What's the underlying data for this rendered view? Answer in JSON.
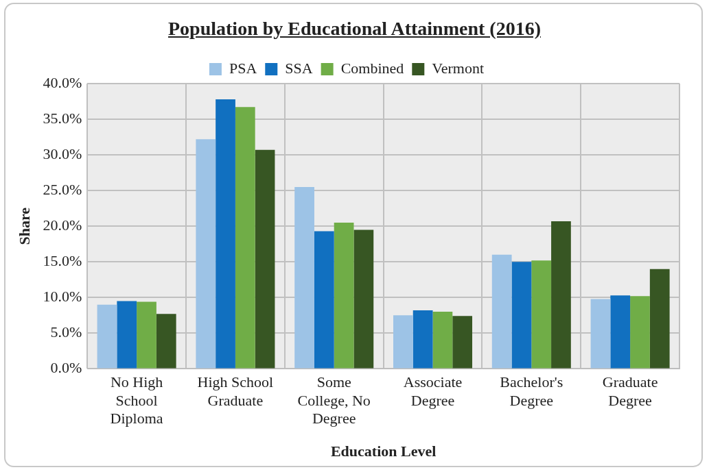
{
  "chart_data": {
    "type": "bar",
    "title": "Population by Educational Attainment (2016)",
    "xlabel": "Education Level",
    "ylabel": "Share",
    "categories": [
      "No High School Diploma",
      "High School Graduate",
      "Some College, No Degree",
      "Associate Degree",
      "Bachelor's Degree",
      "Graduate Degree"
    ],
    "series": [
      {
        "name": "PSA",
        "color": "#9dc3e6",
        "values": [
          9.0,
          32.2,
          25.5,
          7.5,
          16.0,
          9.8
        ]
      },
      {
        "name": "SSA",
        "color": "#1170c0",
        "values": [
          9.5,
          37.8,
          19.3,
          8.2,
          15.0,
          10.3
        ]
      },
      {
        "name": "Combined",
        "color": "#70ad47",
        "values": [
          9.4,
          36.7,
          20.5,
          8.0,
          15.2,
          10.2
        ]
      },
      {
        "name": "Vermont",
        "color": "#375623",
        "values": [
          7.7,
          30.7,
          19.5,
          7.4,
          20.7,
          14.0
        ]
      }
    ],
    "ylim": [
      0,
      40
    ],
    "yticks": [
      {
        "value": 0,
        "label": "0.0%"
      },
      {
        "value": 5,
        "label": "5.0%"
      },
      {
        "value": 10,
        "label": "10.0%"
      },
      {
        "value": 15,
        "label": "15.0%"
      },
      {
        "value": 20,
        "label": "20.0%"
      },
      {
        "value": 25,
        "label": "25.0%"
      },
      {
        "value": 30,
        "label": "30.0%"
      },
      {
        "value": 35,
        "label": "35.0%"
      },
      {
        "value": 40,
        "label": "40.0%"
      }
    ],
    "grid": true,
    "legend": "top"
  }
}
